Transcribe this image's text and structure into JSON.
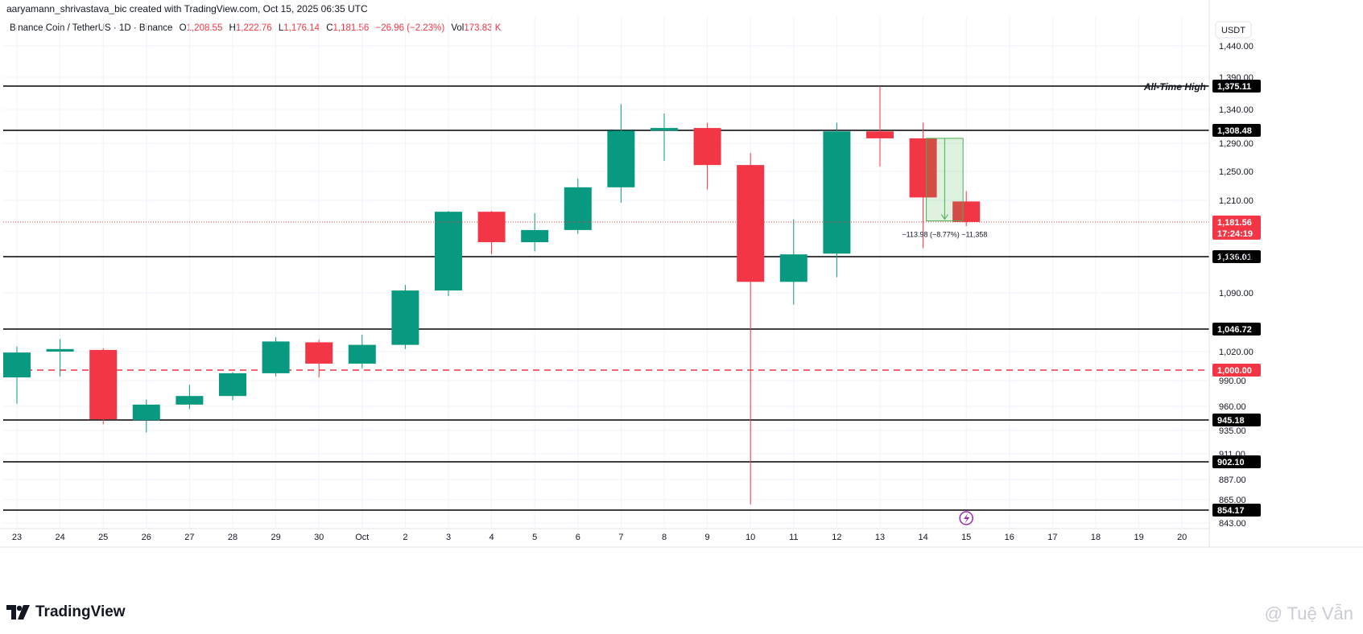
{
  "header": {
    "attribution": "aaryamann_shrivastava_bic created with TradingView.com, Oct 15, 2025 06:35 UTC",
    "symbol": "Binance Coin / TetherUS · 1D · Binance",
    "o_label": "O",
    "o_value": "1,208.55",
    "h_label": "H",
    "h_value": "1,222.76",
    "l_label": "L",
    "l_value": "1,176.14",
    "c_label": "C",
    "c_value": "1,181.56",
    "change": "−26.96 (−2.23%)",
    "vol_label": "Vol",
    "vol_value": "173.83 K"
  },
  "currency_button": "USDT",
  "footer": {
    "brand": "TradingView",
    "watermark": "@ Tuệ Vẫn"
  },
  "colors": {
    "up": "#089981",
    "down": "#f23645",
    "level": "#000000",
    "price_line": "#f23645"
  },
  "chart_data": {
    "type": "candlestick",
    "title": "",
    "ylim": [
      843,
      1470
    ],
    "y_ticks": [
      1440,
      1390,
      1340,
      1290,
      1250,
      1210,
      1136,
      1090,
      1020,
      990,
      960,
      935,
      911,
      887,
      865,
      843
    ],
    "y_tick_labels": [
      "1,440.00",
      "1,390.00",
      "1,340.00",
      "1,290.00",
      "1,250.00",
      "1,210.00",
      "1,136.00",
      "1,090.00",
      "1,020.00",
      "990.00",
      "960.00",
      "935.00",
      "911.00",
      "887.00",
      "865.00",
      "843.00"
    ],
    "x_labels": [
      "23",
      "24",
      "25",
      "26",
      "27",
      "28",
      "29",
      "30",
      "Oct",
      "2",
      "3",
      "4",
      "5",
      "6",
      "7",
      "8",
      "9",
      "10",
      "11",
      "12",
      "13",
      "14",
      "15",
      "16",
      "17",
      "18",
      "19",
      "20"
    ],
    "candles": [
      {
        "date": "Sep 23",
        "open": 993,
        "high": 1026,
        "low": 963,
        "close": 1019
      },
      {
        "date": "Sep 24",
        "open": 1020,
        "high": 1035,
        "low": 994,
        "close": 1023
      },
      {
        "date": "Sep 25",
        "open": 1022,
        "high": 1024,
        "low": 941,
        "close": 946
      },
      {
        "date": "Sep 26",
        "open": 945,
        "high": 968,
        "low": 933,
        "close": 962
      },
      {
        "date": "Sep 27",
        "open": 962,
        "high": 985,
        "low": 957,
        "close": 972
      },
      {
        "date": "Sep 28",
        "open": 972,
        "high": 998,
        "low": 967,
        "close": 997
      },
      {
        "date": "Sep 29",
        "open": 997,
        "high": 1037,
        "low": 994,
        "close": 1032
      },
      {
        "date": "Sep 30",
        "open": 1031,
        "high": 1034,
        "low": 993,
        "close": 1007
      },
      {
        "date": "Oct 1",
        "open": 1007,
        "high": 1040,
        "low": 1002,
        "close": 1028
      },
      {
        "date": "Oct 2",
        "open": 1028,
        "high": 1100,
        "low": 1023,
        "close": 1093
      },
      {
        "date": "Oct 3",
        "open": 1093,
        "high": 1196,
        "low": 1086,
        "close": 1195
      },
      {
        "date": "Oct 4",
        "open": 1195,
        "high": 1196,
        "low": 1139,
        "close": 1155
      },
      {
        "date": "Oct 5",
        "open": 1155,
        "high": 1193,
        "low": 1143,
        "close": 1171
      },
      {
        "date": "Oct 6",
        "open": 1171,
        "high": 1240,
        "low": 1166,
        "close": 1228
      },
      {
        "date": "Oct 7",
        "open": 1228,
        "high": 1348,
        "low": 1207,
        "close": 1308
      },
      {
        "date": "Oct 8",
        "open": 1308,
        "high": 1334,
        "low": 1265,
        "close": 1312
      },
      {
        "date": "Oct 9",
        "open": 1312,
        "high": 1320,
        "low": 1225,
        "close": 1259
      },
      {
        "date": "Oct 10",
        "open": 1259,
        "high": 1276,
        "low": 860,
        "close": 1104
      },
      {
        "date": "Oct 11",
        "open": 1104,
        "high": 1185,
        "low": 1076,
        "close": 1139
      },
      {
        "date": "Oct 12",
        "open": 1140,
        "high": 1320,
        "low": 1110,
        "close": 1307
      },
      {
        "date": "Oct 13",
        "open": 1307,
        "high": 1375,
        "low": 1257,
        "close": 1297
      },
      {
        "date": "Oct 14",
        "open": 1297,
        "high": 1320,
        "low": 1147,
        "close": 1214
      },
      {
        "date": "Oct 15",
        "open": 1208.55,
        "high": 1222.76,
        "low": 1176.14,
        "close": 1181.56
      }
    ],
    "horizontal_levels": [
      {
        "value": 1375.11,
        "label": "1,375.11",
        "annotation": "All-Time High"
      },
      {
        "value": 1308.48,
        "label": "1,308.48"
      },
      {
        "value": 1136.01,
        "label": "1,136.01"
      },
      {
        "value": 1046.72,
        "label": "1,046.72"
      },
      {
        "value": 1000.0,
        "label": "1,000.00",
        "style": "dashed-red"
      },
      {
        "value": 945.18,
        "label": "945.18"
      },
      {
        "value": 902.1,
        "label": "902.10"
      },
      {
        "value": 854.17,
        "label": "854.17"
      }
    ],
    "last_price": {
      "value": 1181.56,
      "label": "1,181.56",
      "countdown": "17:24:19"
    },
    "measure": {
      "from_index": 21,
      "to_index": 22,
      "top": 1297,
      "bottom": 1183,
      "label": "−113.98 (−8.77%) −11,358"
    },
    "grid": true
  }
}
